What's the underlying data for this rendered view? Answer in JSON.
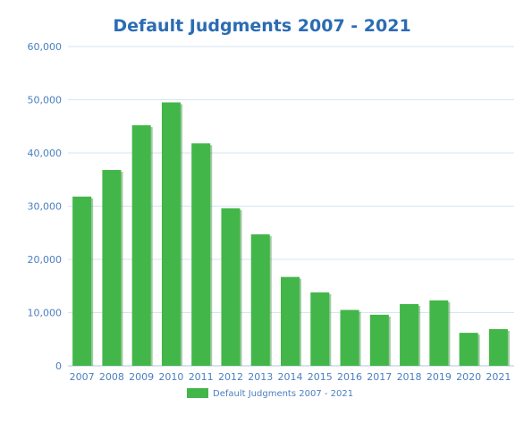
{
  "chart_data": {
    "type": "bar",
    "title": "Default Judgments 2007 - 2021",
    "categories": [
      "2007",
      "2008",
      "2009",
      "2010",
      "2011",
      "2012",
      "2013",
      "2014",
      "2015",
      "2016",
      "2017",
      "2018",
      "2019",
      "2020",
      "2021"
    ],
    "series": [
      {
        "name": "Default Judgments 2007 - 2021",
        "values": [
          31800,
          36800,
          45200,
          49500,
          41800,
          29600,
          24700,
          16700,
          13800,
          10500,
          9600,
          11600,
          12300,
          6200,
          6900
        ]
      }
    ],
    "y_ticks": [
      "0",
      "10,000",
      "20,000",
      "30,000",
      "40,000",
      "50,000",
      "60,000"
    ],
    "ylim": [
      0,
      60000
    ],
    "grid": true,
    "legend": "bottom",
    "colors": {
      "bar": "#43b649",
      "bar_shadow": "#2f8a35",
      "title": "#2b6cb3",
      "ticks": "#4a7fc1",
      "grid": "#d4e6f3"
    }
  }
}
